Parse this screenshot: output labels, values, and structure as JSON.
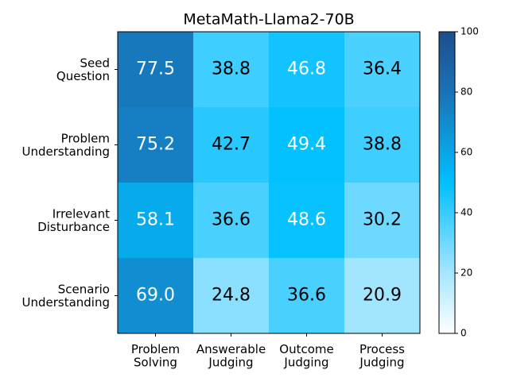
{
  "chart_data": {
    "type": "heatmap",
    "title": "MetaMath-Llama2-70B",
    "rows": [
      "Seed\nQuestion",
      "Problem\nUnderstanding",
      "Irrelevant\nDisturbance",
      "Scenario\nUnderstanding"
    ],
    "columns": [
      "Problem\nSolving",
      "Answerable\nJudging",
      "Outcome\nJudging",
      "Process\nJudging"
    ],
    "values": [
      [
        77.5,
        38.8,
        46.8,
        36.4
      ],
      [
        75.2,
        42.7,
        49.4,
        38.8
      ],
      [
        58.1,
        36.6,
        48.6,
        30.2
      ],
      [
        69.0,
        24.8,
        36.6,
        20.9
      ]
    ],
    "value_labels": [
      [
        "77.5",
        "38.8",
        "46.8",
        "36.4"
      ],
      [
        "75.2",
        "42.7",
        "49.4",
        "38.8"
      ],
      [
        "58.1",
        "36.6",
        "48.6",
        "30.2"
      ],
      [
        "69.0",
        "24.8",
        "36.6",
        "20.9"
      ]
    ],
    "colorbar_lim": [
      0,
      100
    ],
    "colorbar_ticks": [
      0,
      20,
      40,
      60,
      80,
      100
    ],
    "colormap": [
      {
        "value": 0,
        "color": "#ffffff"
      },
      {
        "value": 20,
        "color": "#a6e6ff"
      },
      {
        "value": 50,
        "color": "#00bfff"
      },
      {
        "value": 80,
        "color": "#1a72b6"
      },
      {
        "value": 100,
        "color": "#1f4e8c"
      }
    ]
  }
}
